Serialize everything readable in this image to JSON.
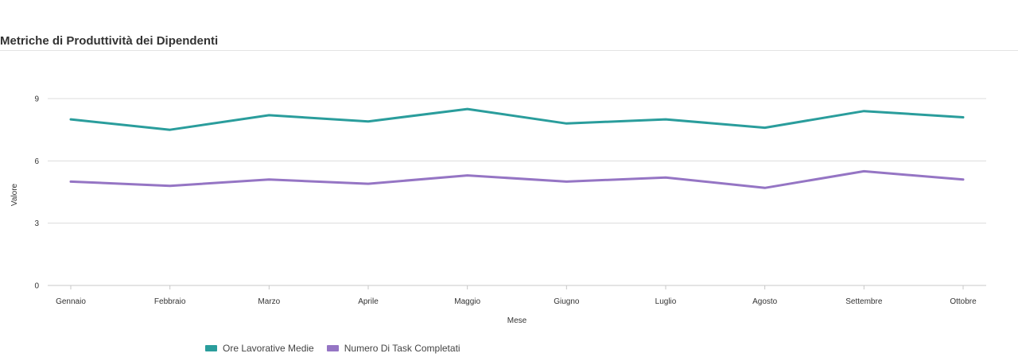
{
  "page": {
    "title": "Metriche di Produttività dei Dipendenti"
  },
  "chart_data": {
    "type": "line",
    "title": "Metriche di Produttività dei Dipendenti",
    "xlabel": "Mese",
    "ylabel": "Valore",
    "categories": [
      "Gennaio",
      "Febbraio",
      "Marzo",
      "Aprile",
      "Maggio",
      "Giugno",
      "Luglio",
      "Agosto",
      "Settembre",
      "Ottobre"
    ],
    "ylim": [
      0,
      9
    ],
    "yticks": [
      0,
      3,
      6,
      9
    ],
    "grid": true,
    "legend_position": "bottom-left",
    "series": [
      {
        "name": "Ore Lavorative Medie",
        "color": "#2a9d9c",
        "values": [
          8.0,
          7.5,
          8.2,
          7.9,
          8.5,
          7.8,
          8.0,
          7.6,
          8.4,
          8.1
        ]
      },
      {
        "name": "Numero Di Task Completati",
        "color": "#9575c4",
        "values": [
          5.0,
          4.8,
          5.1,
          4.9,
          5.3,
          5.0,
          5.2,
          4.7,
          5.5,
          5.1
        ]
      }
    ]
  }
}
